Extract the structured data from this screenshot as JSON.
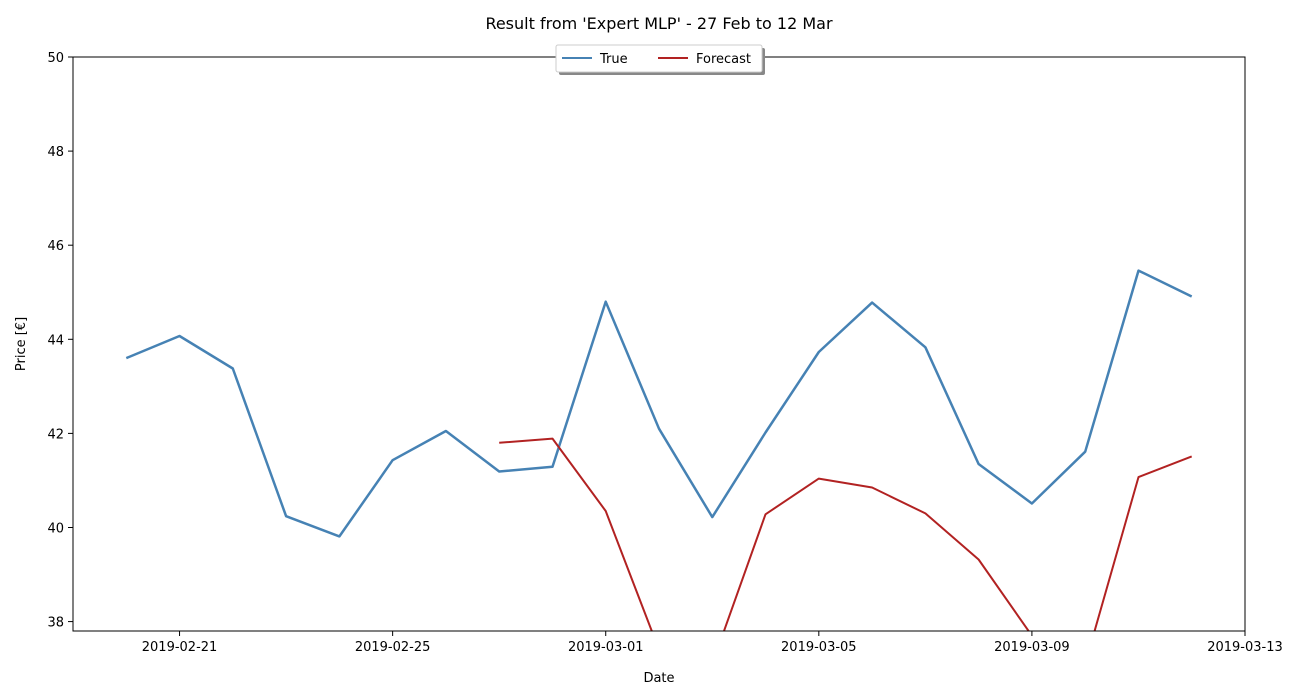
{
  "chart_data": {
    "type": "line",
    "title": "Result from 'Expert MLP' - 27 Feb to 12 Mar",
    "xlabel": "Date",
    "ylabel": "Price [€]",
    "xlim": [
      "2019-02-19",
      "2019-03-13"
    ],
    "ylim": [
      37.8,
      50
    ],
    "x_ticks": [
      "2019-02-21",
      "2019-02-25",
      "2019-03-01",
      "2019-03-05",
      "2019-03-09",
      "2019-03-13"
    ],
    "y_ticks": [
      38,
      40,
      42,
      44,
      46,
      48,
      50
    ],
    "grid": false,
    "legend": {
      "position": "top-center",
      "columns": 2
    },
    "series": [
      {
        "name": "True",
        "color": "#4682b4",
        "x": [
          "2019-02-20",
          "2019-02-21",
          "2019-02-22",
          "2019-02-23",
          "2019-02-24",
          "2019-02-25",
          "2019-02-26",
          "2019-02-27",
          "2019-02-28",
          "2019-03-01",
          "2019-03-02",
          "2019-03-03",
          "2019-03-04",
          "2019-03-05",
          "2019-03-06",
          "2019-03-07",
          "2019-03-08",
          "2019-03-09",
          "2019-03-10",
          "2019-03-11",
          "2019-03-12"
        ],
        "values": [
          43.6,
          44.07,
          43.38,
          40.24,
          39.81,
          41.43,
          42.05,
          41.19,
          41.29,
          44.8,
          42.1,
          40.22,
          42.02,
          43.73,
          44.78,
          43.83,
          41.35,
          40.51,
          41.61,
          45.46,
          44.91
        ]
      },
      {
        "name": "Forecast",
        "color": "#b22222",
        "x": [
          "2019-02-27",
          "2019-02-28",
          "2019-03-01",
          "2019-03-02",
          "2019-03-03",
          "2019-03-04",
          "2019-03-05",
          "2019-03-06",
          "2019-03-07",
          "2019-03-08",
          "2019-03-09",
          "2019-03-10",
          "2019-03-11",
          "2019-03-12"
        ],
        "values": [
          41.8,
          41.89,
          40.35,
          37.4,
          37.1,
          40.28,
          41.04,
          40.85,
          40.3,
          39.32,
          37.7,
          37.1,
          41.07,
          41.51
        ]
      }
    ]
  }
}
